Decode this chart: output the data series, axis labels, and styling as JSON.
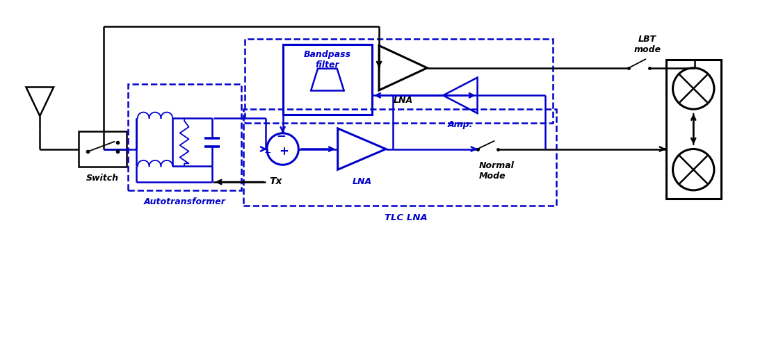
{
  "bg": "#ffffff",
  "black": "#000000",
  "blue": "#0000cc",
  "fw": 11.03,
  "fh": 5.24,
  "Switch": "Switch",
  "Autotransformer": "Autotransformer",
  "Tx": "Tx",
  "Bandpass_filter": "Bandpass\nfilter",
  "Amp": "Amp.",
  "LNA_top": "LNA",
  "LNA_bottom": "LNA",
  "TLC_LNA": "TLC LNA",
  "LBT_mode": "LBT\nmode",
  "Normal_Mode": "Normal\nMode"
}
